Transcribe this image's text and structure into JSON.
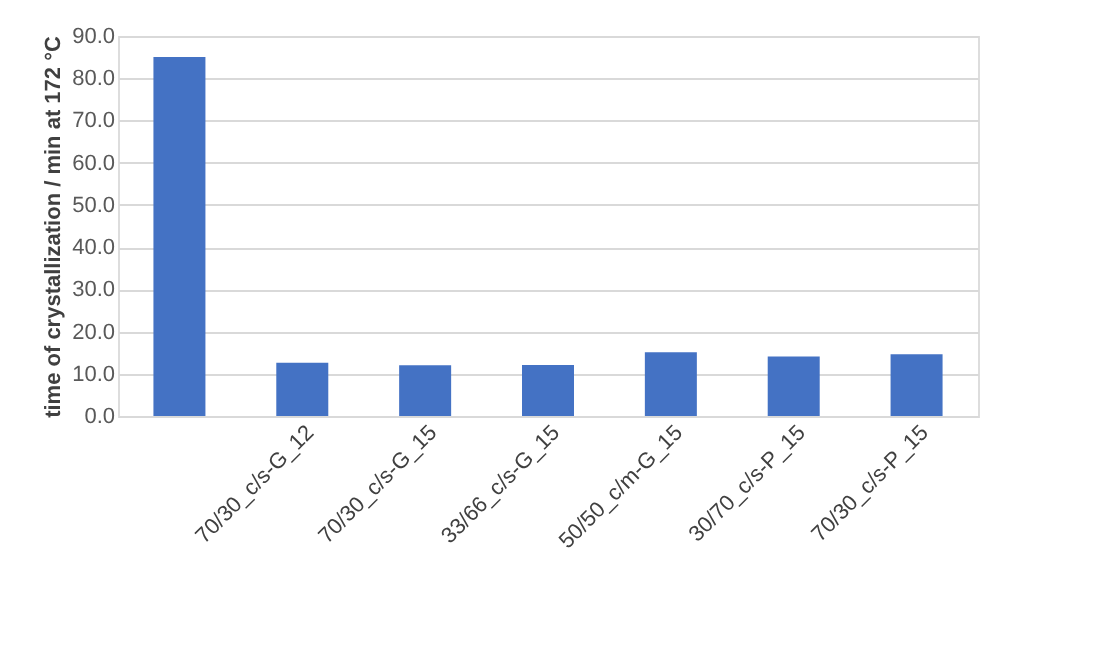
{
  "chart_data": {
    "type": "bar",
    "ylabel": "time of crystallization / min at 172 °C",
    "categories": [
      null,
      "70/30_c/s-G_12",
      "70/30_c/s-G_15",
      "33/66_c/s-G_15",
      "50/50_c/m-G_15",
      "30/70_c/s-P_15",
      "70/30_c/s-P_15"
    ],
    "values": [
      85.0,
      12.6,
      12.0,
      12.1,
      15.1,
      14.1,
      14.6
    ],
    "color": "#4472c4",
    "ylim": [
      0,
      90
    ],
    "yticks": [
      {
        "value": 0,
        "label": "0.0"
      },
      {
        "value": 10,
        "label": "10.0"
      },
      {
        "value": 20,
        "label": "20.0"
      },
      {
        "value": 30,
        "label": "30.0"
      },
      {
        "value": 40,
        "label": "40.0"
      },
      {
        "value": 50,
        "label": "50.0"
      },
      {
        "value": 60,
        "label": "60.0"
      },
      {
        "value": 70,
        "label": "70.0"
      },
      {
        "value": 80,
        "label": "80.0"
      },
      {
        "value": 90,
        "label": "90.0"
      }
    ],
    "grid": "y"
  }
}
